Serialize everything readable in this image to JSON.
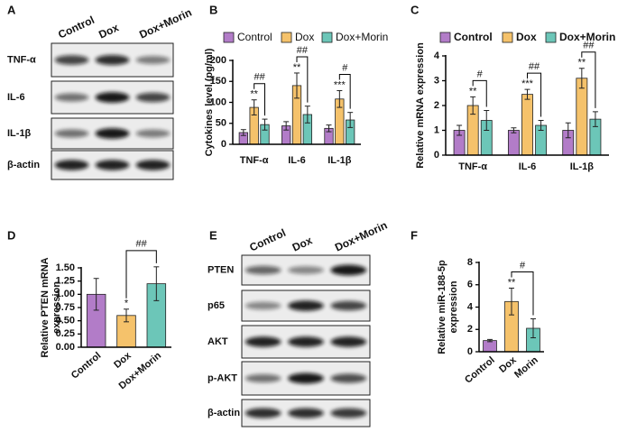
{
  "chart_data": [
    {
      "type": "bar",
      "panel": "B",
      "ylabel": "Cytokines level (pg/ml)",
      "categories": [
        "TNF-α",
        "IL-6",
        "IL-1β"
      ],
      "series": [
        {
          "name": "Control",
          "color": "#b27cc8",
          "values": [
            28,
            44,
            38
          ],
          "errors": [
            7,
            10,
            8
          ]
        },
        {
          "name": "Dox",
          "color": "#f5c26b",
          "values": [
            88,
            140,
            108
          ],
          "errors": [
            18,
            30,
            20
          ]
        },
        {
          "name": "Dox+Morin",
          "color": "#6cc6b8",
          "values": [
            47,
            71,
            58
          ],
          "errors": [
            13,
            20,
            18
          ]
        }
      ],
      "ylim": [
        0,
        200
      ],
      "yticks": [
        0,
        50,
        100,
        150,
        200
      ],
      "annotations": [
        "**",
        "**",
        "***",
        "##",
        "##",
        "#"
      ]
    },
    {
      "type": "bar",
      "panel": "C",
      "ylabel": "Relative mRNA expression",
      "categories": [
        "TNF-α",
        "IL-6",
        "IL-1β"
      ],
      "series": [
        {
          "name": "Control",
          "color": "#b27cc8",
          "values": [
            1,
            1,
            1
          ],
          "errors": [
            0.2,
            0.1,
            0.3
          ]
        },
        {
          "name": "Dox",
          "color": "#f5c26b",
          "values": [
            2,
            2.45,
            3.1
          ],
          "errors": [
            0.35,
            0.2,
            0.4
          ]
        },
        {
          "name": "Dox+Morin",
          "color": "#6cc6b8",
          "values": [
            1.4,
            1.2,
            1.45
          ],
          "errors": [
            0.4,
            0.2,
            0.3
          ]
        }
      ],
      "ylim": [
        0,
        4
      ],
      "yticks": [
        0,
        1,
        2,
        3,
        4
      ],
      "annotations": [
        "**",
        "***",
        "**",
        "#",
        "##",
        "##"
      ]
    },
    {
      "type": "bar",
      "panel": "D",
      "ylabel_lines": [
        "Relative PTEN mRNA",
        "expression"
      ],
      "categories": [
        "Control",
        "Dox",
        "Dox+Morin"
      ],
      "values": [
        1.0,
        0.6,
        1.2
      ],
      "errors": [
        0.3,
        0.12,
        0.32
      ],
      "colors": [
        "#b27cc8",
        "#f5c26b",
        "#6cc6b8"
      ],
      "ylim": [
        0,
        1.5
      ],
      "yticks": [
        {
          "value": 0,
          "label": "0.00"
        },
        {
          "value": 0.25,
          "label": "0.25"
        },
        {
          "value": 0.5,
          "label": "0.50"
        },
        {
          "value": 0.75,
          "label": "0.75"
        },
        {
          "value": 1,
          "label": "1.00"
        },
        {
          "value": 1.25,
          "label": "1.25"
        },
        {
          "value": 1.5,
          "label": "1.50"
        }
      ],
      "annotations": [
        "*",
        "##"
      ]
    },
    {
      "type": "bar",
      "panel": "F",
      "ylabel_lines": [
        "Relative miR-188-5p",
        "expression"
      ],
      "categories": [
        "Control",
        "Dox",
        "Morin"
      ],
      "values": [
        1,
        4.5,
        2.1
      ],
      "errors": [
        0.1,
        1.2,
        0.85
      ],
      "colors": [
        "#b27cc8",
        "#f5c26b",
        "#6cc6b8"
      ],
      "ylim": [
        0,
        8
      ],
      "yticks": [
        0,
        2,
        4,
        6,
        8
      ],
      "annotations": [
        "**",
        "#"
      ]
    }
  ],
  "blots": [
    {
      "panel": "A",
      "lanes": [
        "Control",
        "Dox",
        "Dox+Morin"
      ],
      "rows": [
        "TNF-α",
        "IL-6",
        "IL-1β",
        "β-actin"
      ]
    },
    {
      "panel": "E",
      "lanes": [
        "Control",
        "Dox",
        "Dox+Morin"
      ],
      "rows": [
        "PTEN",
        "p65",
        "AKT",
        "p-AKT",
        "β-actin"
      ]
    }
  ]
}
